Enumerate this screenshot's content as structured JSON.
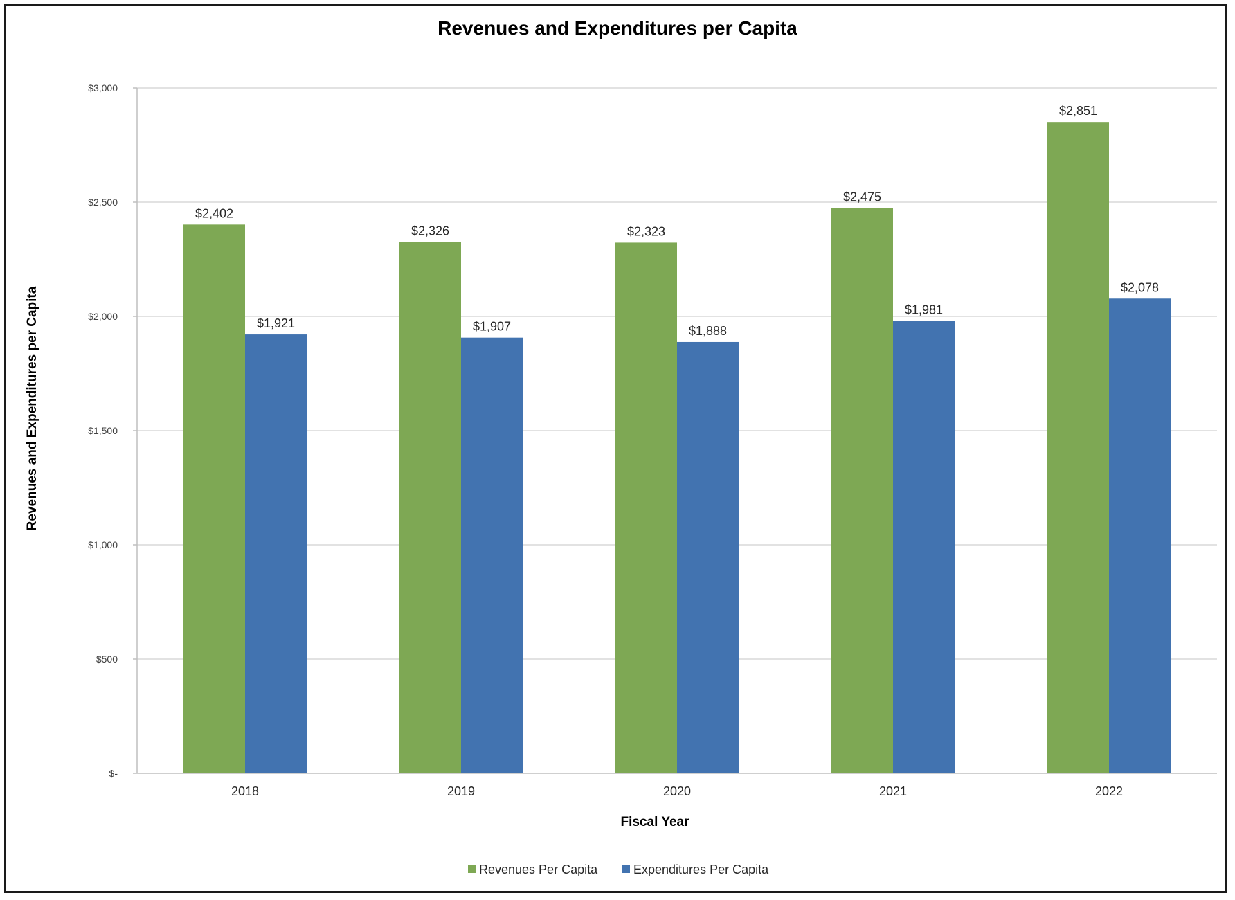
{
  "chart_data": {
    "type": "bar",
    "title": "Revenues and Expenditures per Capita",
    "xlabel": "Fiscal Year",
    "ylabel": "Revenues and Expenditures per Capita",
    "categories": [
      "2018",
      "2019",
      "2020",
      "2021",
      "2022"
    ],
    "series": [
      {
        "name": "Revenues Per Capita",
        "color": "#7EA854",
        "values": [
          2402,
          2326,
          2323,
          2475,
          2851
        ],
        "labels": [
          "$2,402",
          "$2,326",
          "$2,323",
          "$2,475",
          "$2,851"
        ]
      },
      {
        "name": "Expenditures Per Capita",
        "color": "#4273B0",
        "values": [
          1921,
          1907,
          1888,
          1981,
          2078
        ],
        "labels": [
          "$1,921",
          "$1,907",
          "$1,888",
          "$1,981",
          "$2,078"
        ]
      }
    ],
    "ylim": [
      0,
      3000
    ],
    "yticks": [
      0,
      500,
      1000,
      1500,
      2000,
      2500,
      3000
    ],
    "ytick_labels": [
      "$-",
      "$500",
      "$1,000",
      "$1,500",
      "$2,000",
      "$2,500",
      "$3,000"
    ],
    "grid": true,
    "legend_position": "bottom"
  }
}
